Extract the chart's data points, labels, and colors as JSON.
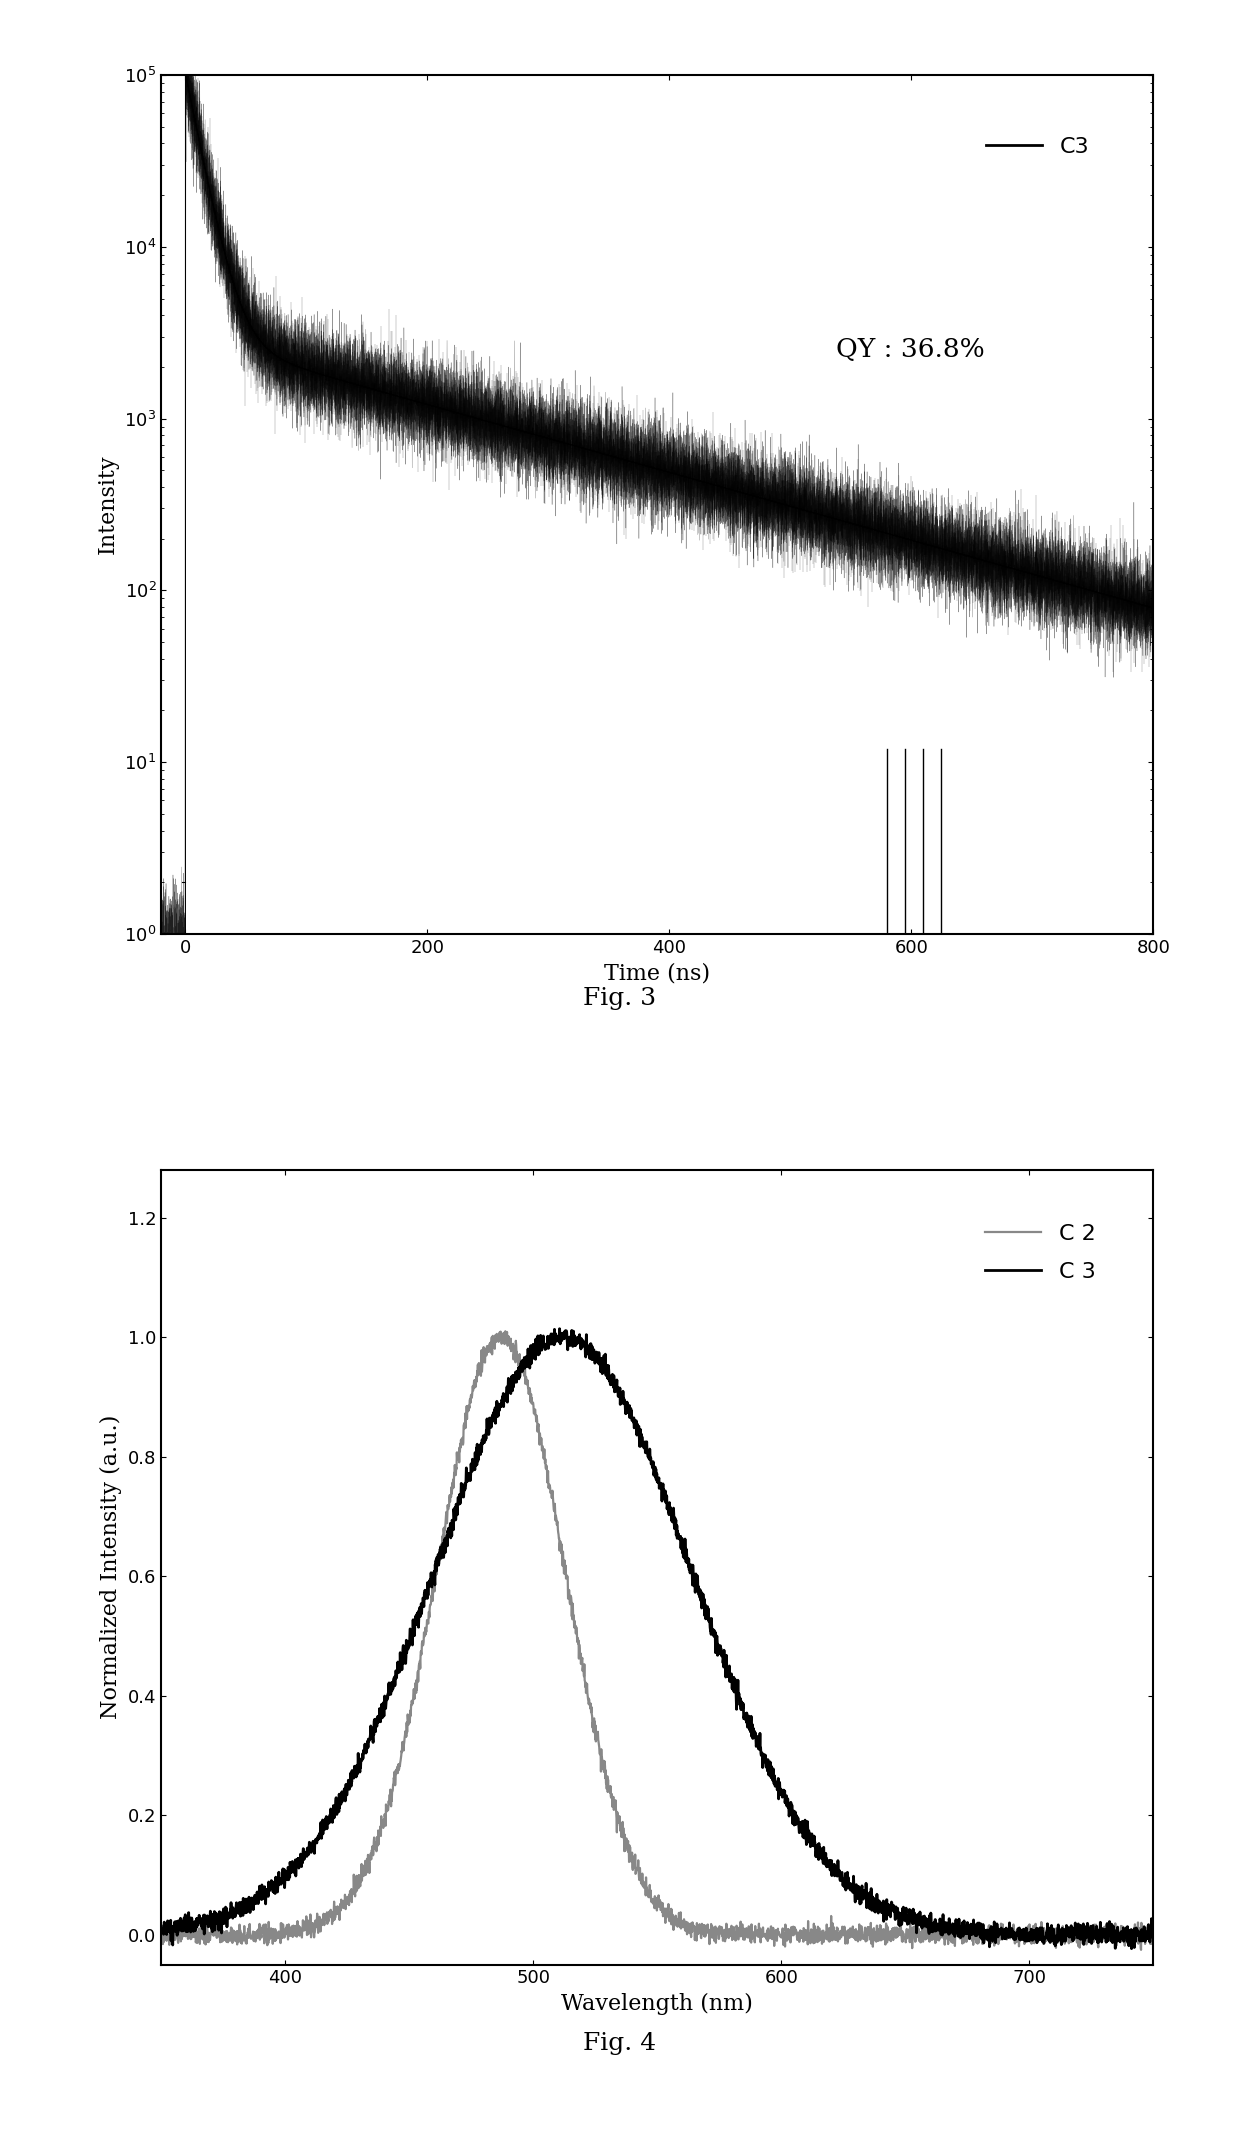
{
  "fig3": {
    "xlabel": "Time (ns)",
    "ylabel": "Intensity",
    "xlim": [
      -20,
      800
    ],
    "ylim_log": [
      1.0,
      100000.0
    ],
    "xticks": [
      0,
      200,
      400,
      600,
      800
    ],
    "legend_label": "C3",
    "qy_text": "QY : 36.8%",
    "color": "#000000",
    "decay_fast": 12,
    "decay_slow": 220,
    "amplitude_fast": 100000.0,
    "amplitude_slow": 3000,
    "noise_sigma": 0.3
  },
  "fig4": {
    "xlabel": "Wavelength (nm)",
    "ylabel": "Normalized Intensity (a.u.)",
    "xlim": [
      350,
      750
    ],
    "ylim": [
      -0.05,
      1.28
    ],
    "xticks": [
      400,
      500,
      600,
      700
    ],
    "yticks": [
      0.0,
      0.2,
      0.4,
      0.6,
      0.8,
      1.0,
      1.2
    ],
    "C2_peak": 487,
    "C2_sigma": 26,
    "C3_peak": 512,
    "C3_sigma": 52,
    "color_C2": "#888888",
    "color_C3": "#000000",
    "legend_C2": "C 2",
    "legend_C3": "C 3"
  },
  "background_color": "#ffffff",
  "text_color": "#000000",
  "fig3_caption": "Fig. 3",
  "fig4_caption": "Fig. 4"
}
